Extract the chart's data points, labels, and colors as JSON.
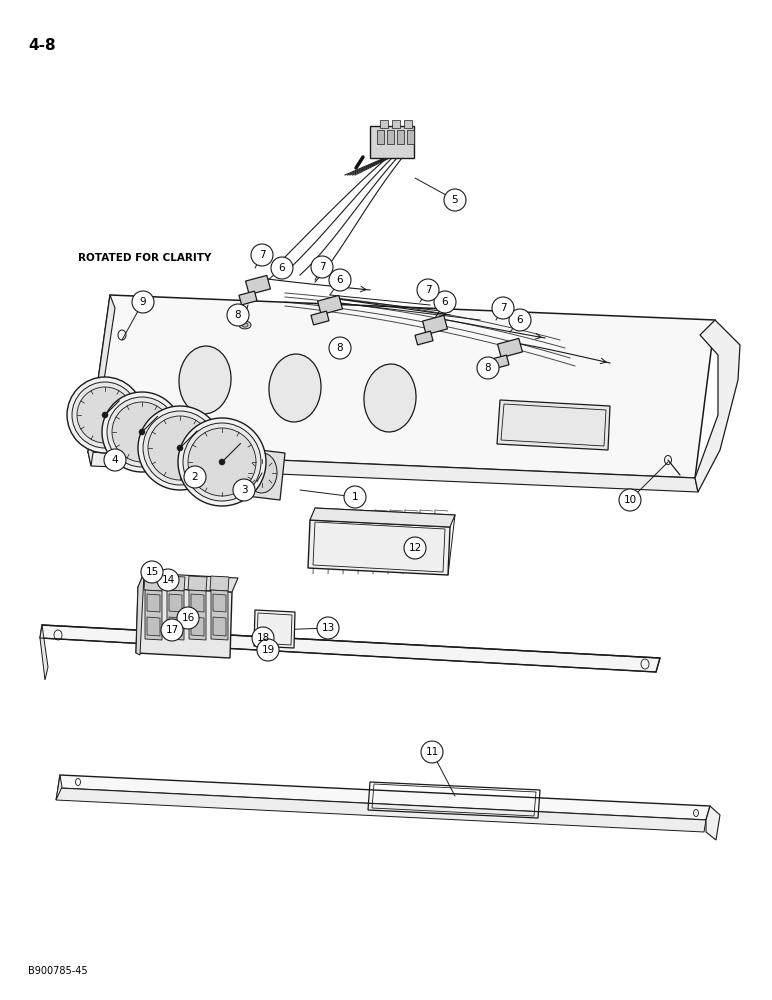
{
  "page_number": "4-8",
  "footer_text": "B900785-45",
  "label_text": "ROTATED FOR CLARITY",
  "background_color": "#ffffff",
  "line_color": "#1a1a1a",
  "text_color": "#000000",
  "figsize": [
    7.72,
    10.0
  ],
  "dpi": 100
}
